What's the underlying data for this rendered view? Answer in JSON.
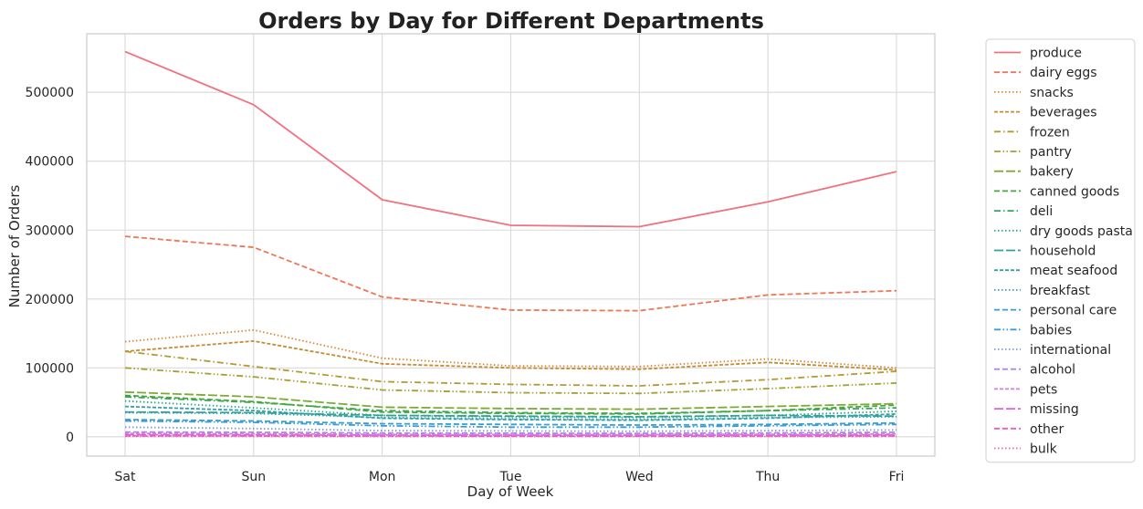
{
  "chart_data": {
    "type": "line",
    "title": "Orders by Day for Different Departments",
    "xlabel": "Day of Week",
    "ylabel": "Number of Orders",
    "categories": [
      "Sat",
      "Sun",
      "Mon",
      "Tue",
      "Wed",
      "Thu",
      "Fri"
    ],
    "ylim": [
      -28000,
      585000
    ],
    "yticks": [
      0,
      100000,
      200000,
      300000,
      400000,
      500000
    ],
    "grid": true,
    "legend_position": "outside-right",
    "series": [
      {
        "name": "produce",
        "color": "#f0717f",
        "dash": "solid",
        "values": [
          559000,
          482000,
          344000,
          307000,
          305000,
          341000,
          385000
        ]
      },
      {
        "name": "dairy eggs",
        "color": "#ee7856",
        "dash": "dashed",
        "values": [
          291000,
          275000,
          203000,
          184000,
          183000,
          206000,
          212000
        ]
      },
      {
        "name": "snacks",
        "color": "#d88634",
        "dash": "dotted",
        "values": [
          138000,
          155000,
          114000,
          103000,
          102000,
          113000,
          100000
        ]
      },
      {
        "name": "beverages",
        "color": "#c58c32",
        "dash": "densedash",
        "values": [
          124000,
          139000,
          106000,
          100000,
          98000,
          108000,
          97000
        ]
      },
      {
        "name": "frozen",
        "color": "#b39a32",
        "dash": "dashdot",
        "values": [
          124000,
          102000,
          80000,
          76000,
          74000,
          83000,
          95000
        ]
      },
      {
        "name": "pantry",
        "color": "#a3a134",
        "dash": "dashdotdot",
        "values": [
          100000,
          87000,
          68000,
          64000,
          63000,
          70000,
          78000
        ]
      },
      {
        "name": "bakery",
        "color": "#7dab32",
        "dash": "longdash",
        "values": [
          65000,
          58000,
          43000,
          41000,
          40000,
          44000,
          48000
        ]
      },
      {
        "name": "canned goods",
        "color": "#46a838",
        "dash": "dashed",
        "values": [
          60000,
          51000,
          36000,
          34000,
          33000,
          38000,
          46000
        ]
      },
      {
        "name": "deli",
        "color": "#32a55e",
        "dash": "dashdot",
        "values": [
          58000,
          50000,
          38000,
          35000,
          34000,
          38000,
          42000
        ]
      },
      {
        "name": "dry goods pasta",
        "color": "#2fa588",
        "dash": "dotted",
        "values": [
          52000,
          42000,
          31000,
          29000,
          28000,
          31000,
          37000
        ]
      },
      {
        "name": "household",
        "color": "#30a39a",
        "dash": "longdash",
        "values": [
          36000,
          35000,
          31000,
          30000,
          29000,
          31000,
          30000
        ]
      },
      {
        "name": "meat seafood",
        "color": "#31a1a8",
        "dash": "densedash",
        "values": [
          44000,
          38000,
          27000,
          25000,
          24000,
          27000,
          33000
        ]
      },
      {
        "name": "breakfast",
        "color": "#32a0b8",
        "dash": "dotted",
        "values": [
          35000,
          34000,
          28000,
          26000,
          25000,
          28000,
          29000
        ]
      },
      {
        "name": "personal care",
        "color": "#35a0cc",
        "dash": "dashed",
        "values": [
          25000,
          23000,
          19000,
          18000,
          17000,
          18000,
          20000
        ]
      },
      {
        "name": "babies",
        "color": "#3b9be0",
        "dash": "dashdotdot",
        "values": [
          23000,
          21000,
          16000,
          14000,
          14000,
          16000,
          18000
        ]
      },
      {
        "name": "international",
        "color": "#7d96e6",
        "dash": "dotted",
        "values": [
          14000,
          12000,
          9000,
          8500,
          8000,
          9000,
          10000
        ]
      },
      {
        "name": "alcohol",
        "color": "#a98be6",
        "dash": "dashed",
        "values": [
          7000,
          6500,
          5500,
          5200,
          5000,
          5600,
          6500
        ]
      },
      {
        "name": "pets",
        "color": "#d978e6",
        "dash": "densedash",
        "values": [
          5000,
          4500,
          3500,
          3300,
          3200,
          3600,
          4000
        ]
      },
      {
        "name": "missing",
        "color": "#e85ce3",
        "dash": "longdash",
        "values": [
          3000,
          3000,
          2500,
          2300,
          2200,
          2500,
          2800
        ]
      },
      {
        "name": "other",
        "color": "#eb5cbd",
        "dash": "dashed",
        "values": [
          1500,
          1400,
          1100,
          1000,
          1000,
          1100,
          1300
        ]
      },
      {
        "name": "bulk",
        "color": "#ee6aa6",
        "dash": "dotted",
        "values": [
          700,
          650,
          500,
          450,
          450,
          500,
          600
        ]
      }
    ]
  }
}
